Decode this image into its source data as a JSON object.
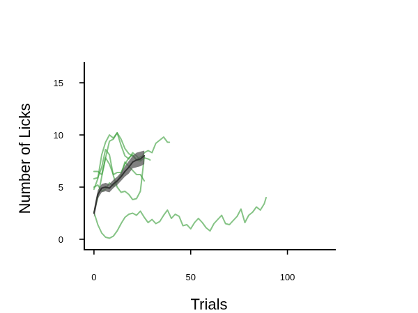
{
  "colors": {
    "individual_series": "#3a9e3a",
    "mean_line": "#333333",
    "sem_band": "#555555",
    "axis": "#000000",
    "background": "#ffffff"
  },
  "chart_data": {
    "type": "line",
    "title": "",
    "xlabel": "Trials",
    "ylabel": "Number of Licks",
    "xlim": [
      -5,
      125
    ],
    "ylim": [
      -1,
      17
    ],
    "xticks": [
      0,
      50,
      100
    ],
    "yticks": [
      0,
      5,
      10,
      15
    ],
    "grid": false,
    "legend": "none",
    "series": [
      {
        "x": [
          0,
          2,
          4,
          6,
          8,
          10,
          12,
          14,
          16,
          18,
          20,
          22,
          24,
          26,
          28,
          30,
          32,
          34,
          36,
          38,
          40,
          42,
          44,
          46,
          48,
          50,
          52,
          54,
          56,
          58,
          60,
          62,
          64,
          66,
          68,
          70,
          72,
          74,
          76,
          78,
          80,
          82,
          84,
          86,
          88,
          89
        ],
        "y": [
          2.6,
          1.4,
          0.6,
          0.2,
          0.1,
          0.3,
          0.8,
          1.5,
          2.1,
          2.4,
          2.5,
          2.3,
          2.7,
          2.1,
          1.6,
          1.9,
          1.5,
          1.7,
          2.3,
          2.8,
          2.0,
          2.4,
          2.2,
          1.3,
          1.4,
          1.0,
          1.6,
          2.0,
          1.6,
          1.1,
          0.8,
          1.5,
          1.9,
          2.3,
          1.5,
          1.4,
          1.8,
          2.2,
          2.9,
          1.6,
          2.3,
          2.6,
          3.1,
          2.8,
          3.4,
          4.0
        ]
      },
      {
        "x": [
          0,
          2,
          4,
          6,
          8,
          10,
          12,
          14,
          16,
          18,
          20,
          22,
          24,
          26,
          28,
          30,
          32,
          34,
          36,
          38,
          39
        ],
        "y": [
          4.8,
          5.8,
          8.1,
          9.3,
          10.0,
          9.7,
          10.2,
          9.0,
          8.0,
          7.7,
          8.3,
          8.0,
          7.6,
          8.3,
          8.5,
          8.3,
          9.2,
          9.5,
          9.8,
          9.3,
          9.3
        ]
      },
      {
        "x": [
          0,
          2,
          4,
          6,
          8,
          10,
          12,
          14,
          16,
          18,
          20,
          22,
          24,
          26,
          28,
          29
        ],
        "y": [
          6.5,
          6.5,
          6.2,
          7.8,
          9.4,
          9.6,
          10.2,
          9.6,
          8.7,
          8.2,
          8.0,
          7.6,
          7.5,
          7.8,
          7.7,
          7.6
        ]
      },
      {
        "x": [
          0,
          2,
          4,
          6,
          8,
          10,
          12,
          14,
          16,
          18,
          20,
          22,
          24,
          26
        ],
        "y": [
          5.8,
          5.9,
          6.9,
          8.6,
          8.1,
          6.1,
          5.0,
          4.5,
          4.6,
          4.3,
          3.8,
          3.9,
          4.6,
          7.9
        ]
      },
      {
        "x": [
          0,
          2,
          4,
          6,
          8,
          10,
          12,
          14,
          16,
          18,
          20,
          22,
          24,
          26
        ],
        "y": [
          2.6,
          4.0,
          6.0,
          7.8,
          7.2,
          6.2,
          6.4,
          6.4,
          7.2,
          7.8,
          8.1,
          7.6,
          7.9,
          8.0
        ]
      },
      {
        "x": [
          0,
          2,
          4,
          6,
          8,
          10,
          12,
          14,
          16,
          18,
          20,
          22,
          24,
          26
        ],
        "y": [
          5.0,
          5.2,
          4.6,
          4.8,
          5.4,
          5.1,
          5.5,
          6.2,
          7.4,
          7.0,
          6.6,
          6.2,
          6.2,
          5.6
        ]
      }
    ],
    "mean": {
      "x": [
        0,
        1,
        2,
        4,
        6,
        8,
        10,
        12,
        14,
        16,
        18,
        20,
        22,
        24,
        26
      ],
      "y": [
        2.5,
        3.4,
        4.3,
        4.9,
        5.0,
        4.9,
        5.3,
        5.6,
        6.0,
        6.5,
        6.9,
        7.4,
        7.6,
        7.7,
        8.0
      ],
      "sem_lower": [
        2.1,
        2.9,
        3.9,
        4.5,
        4.6,
        4.5,
        4.9,
        5.2,
        5.6,
        6.0,
        6.3,
        6.8,
        6.9,
        7.0,
        7.2
      ],
      "sem_upper": [
        2.9,
        3.9,
        4.7,
        5.3,
        5.4,
        5.3,
        5.7,
        6.0,
        6.4,
        7.0,
        7.5,
        8.0,
        8.3,
        8.4,
        8.5
      ]
    }
  }
}
